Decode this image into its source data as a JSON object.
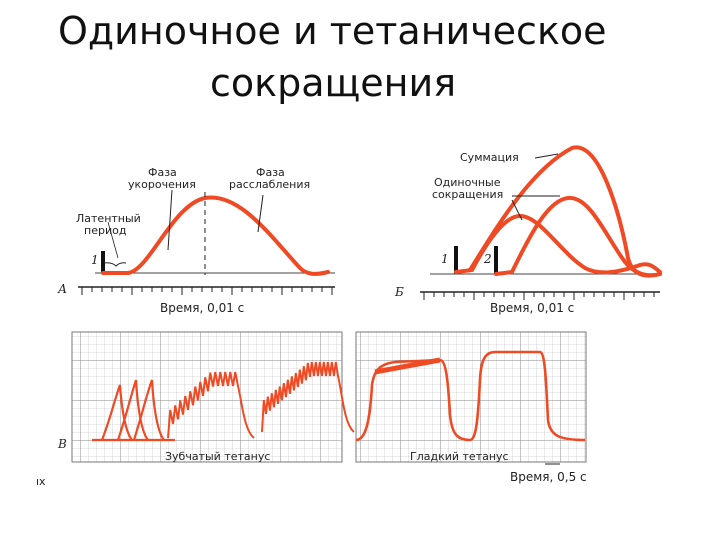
{
  "slide": {
    "title_line1": "Одиночное и тетаническое",
    "title_line2": "сокращения"
  },
  "panel_a": {
    "letter": "А",
    "label_shortening": [
      "Фаза",
      "укорочения"
    ],
    "label_relaxation": [
      "Фаза",
      "расслабления"
    ],
    "label_latent": [
      "Латентный",
      "период"
    ],
    "stimulus_mark": "1",
    "axis_label": "Время, 0,01 с"
  },
  "panel_b": {
    "letter": "Б",
    "label_summation": "Суммация",
    "label_single": [
      "Одиночные",
      "сокращения"
    ],
    "stimulus_mark_1": "1",
    "stimulus_mark_2": "2",
    "axis_label": "Время, 0,01 с"
  },
  "panel_c": {
    "letter": "В",
    "label_serrated": "Зубчатый тетанус",
    "label_smooth": "Гладкий тетанус",
    "axis_label": "Время, 0,5 с",
    "corner_mark": "ıx"
  },
  "colors": {
    "curve": "#f04a25",
    "grid": "#9a9a9a",
    "ink": "#222222"
  }
}
